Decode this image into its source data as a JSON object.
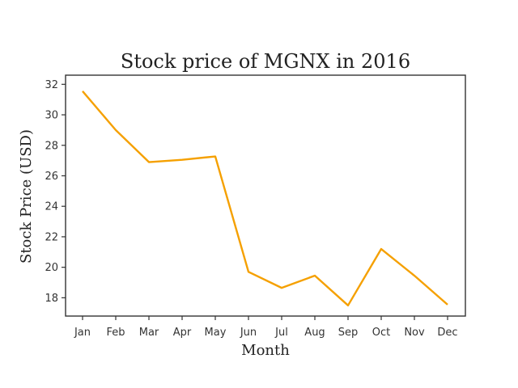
{
  "chart_data": {
    "type": "line",
    "title": "Stock price of MGNX in 2016",
    "xlabel": "Month",
    "ylabel": "Stock Price (USD)",
    "categories": [
      "Jan",
      "Feb",
      "Mar",
      "Apr",
      "May",
      "Jun",
      "Jul",
      "Aug",
      "Sep",
      "Oct",
      "Nov",
      "Dec"
    ],
    "values": [
      31.55,
      29.0,
      26.9,
      27.05,
      27.27,
      19.7,
      18.65,
      19.45,
      17.5,
      21.2,
      19.45,
      17.55
    ],
    "ylim": [
      16.8,
      32.6
    ],
    "yticks": [
      18,
      20,
      22,
      24,
      26,
      28,
      30,
      32
    ],
    "grid": false,
    "legend": "none",
    "line_color": "#f5a000"
  }
}
